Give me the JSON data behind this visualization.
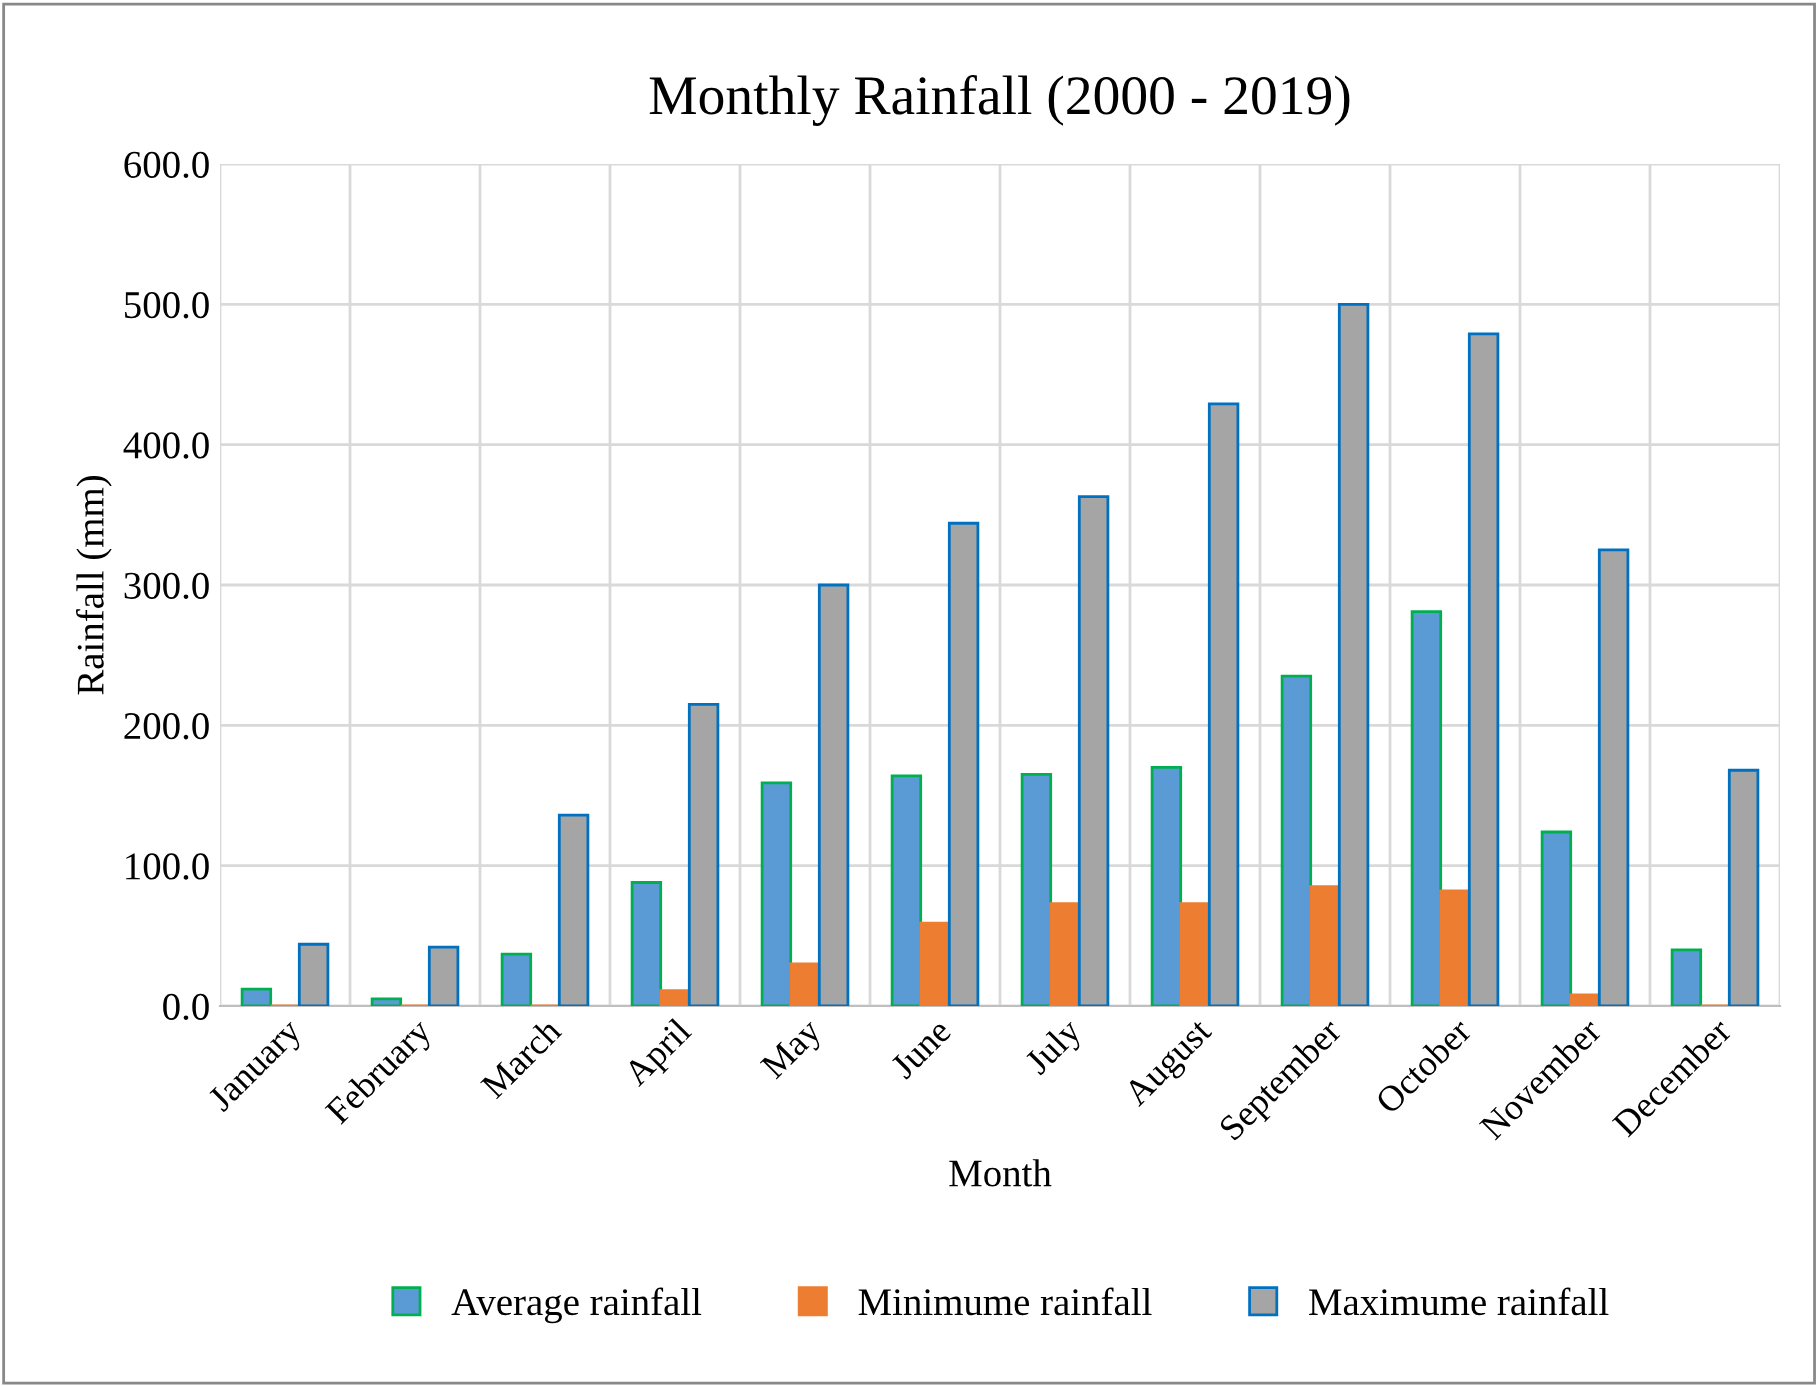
{
  "chart_data": {
    "type": "bar",
    "title": "Monthly Rainfall (2000 - 2019)",
    "xlabel": "Month",
    "ylabel": "Rainfall (mm)",
    "categories": [
      "January",
      "February",
      "March",
      "April",
      "May",
      "June",
      "July",
      "August",
      "September",
      "October",
      "November",
      "December"
    ],
    "series": [
      {
        "name": "Average rainfall",
        "color": "#5b9bd5",
        "values": [
          12,
          5,
          37,
          88,
          159,
          164,
          165,
          170,
          235,
          281,
          124,
          40
        ]
      },
      {
        "name": "Minimume rainfall",
        "color": "#ed7d31",
        "values": [
          0,
          0,
          0,
          11,
          30,
          59,
          73,
          73,
          85,
          82,
          8,
          0
        ]
      },
      {
        "name": "Maximume rainfall",
        "color": "#a5a5a5",
        "values": [
          44,
          42,
          136,
          215,
          300,
          344,
          363,
          429,
          500,
          479,
          325,
          168
        ]
      }
    ],
    "ylim": [
      0,
      600
    ],
    "yticks": [
      {
        "value": 0,
        "label": "0.0"
      },
      {
        "value": 100,
        "label": "100.0"
      },
      {
        "value": 200,
        "label": "200.0"
      },
      {
        "value": 300,
        "label": "300.0"
      },
      {
        "value": 400,
        "label": "400.0"
      },
      {
        "value": 500,
        "label": "500.0"
      },
      {
        "value": 600,
        "label": "600.0"
      }
    ],
    "grid": true,
    "legend": "bottom"
  }
}
